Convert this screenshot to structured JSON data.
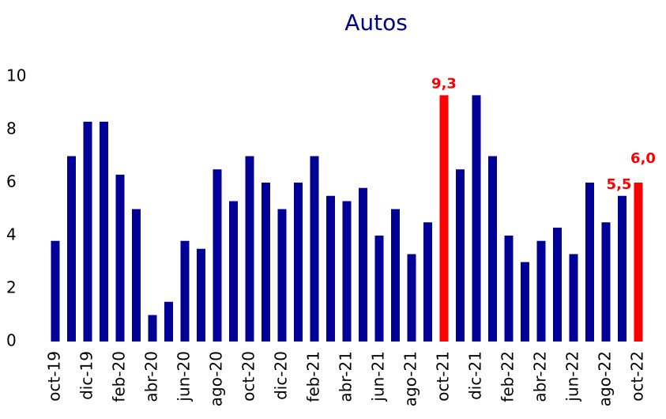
{
  "chart_data": {
    "type": "bar",
    "title": "Autos",
    "categories": [
      "oct-19",
      null,
      "dic-19",
      null,
      "feb-20",
      null,
      "abr-20",
      null,
      "jun-20",
      null,
      "ago-20",
      null,
      "oct-20",
      null,
      "dic-20",
      null,
      "feb-21",
      null,
      "abr-21",
      null,
      "jun-21",
      null,
      "ago-21",
      null,
      "oct-21",
      null,
      "dic-21",
      null,
      "feb-22",
      null,
      "abr-22",
      null,
      "jun-22",
      null,
      "ago-22",
      null,
      "oct-22"
    ],
    "values": [
      3.8,
      7.0,
      8.3,
      8.3,
      6.3,
      5.0,
      1.0,
      1.5,
      3.8,
      3.5,
      6.5,
      5.3,
      7.0,
      6.0,
      5.0,
      6.0,
      7.0,
      5.5,
      5.3,
      5.8,
      4.0,
      5.0,
      3.3,
      4.5,
      9.3,
      6.5,
      9.3,
      7.0,
      4.0,
      3.0,
      3.8,
      4.3,
      3.3,
      6.0,
      4.5,
      5.5,
      6.0
    ],
    "value_labels": [
      null,
      null,
      null,
      null,
      null,
      null,
      null,
      null,
      null,
      null,
      null,
      null,
      null,
      null,
      null,
      null,
      null,
      null,
      null,
      null,
      null,
      null,
      null,
      null,
      "9,3",
      null,
      null,
      null,
      null,
      null,
      null,
      null,
      null,
      null,
      null,
      "5,5",
      "6,0"
    ],
    "colors": [
      "#000096",
      "#000096",
      "#000096",
      "#000096",
      "#000096",
      "#000096",
      "#000096",
      "#000096",
      "#000096",
      "#000096",
      "#000096",
      "#000096",
      "#000096",
      "#000096",
      "#000096",
      "#000096",
      "#000096",
      "#000096",
      "#000096",
      "#000096",
      "#000096",
      "#000096",
      "#000096",
      "#000096",
      "#ff0000",
      "#000096",
      "#000096",
      "#000096",
      "#000096",
      "#000096",
      "#000096",
      "#000096",
      "#000096",
      "#000096",
      "#000096",
      "#000096",
      "#ff0000"
    ],
    "label_color": "#ff0000",
    "ylim": [
      0,
      10
    ],
    "yticks": [
      0,
      2,
      4,
      6,
      8,
      10
    ],
    "grid": false
  }
}
